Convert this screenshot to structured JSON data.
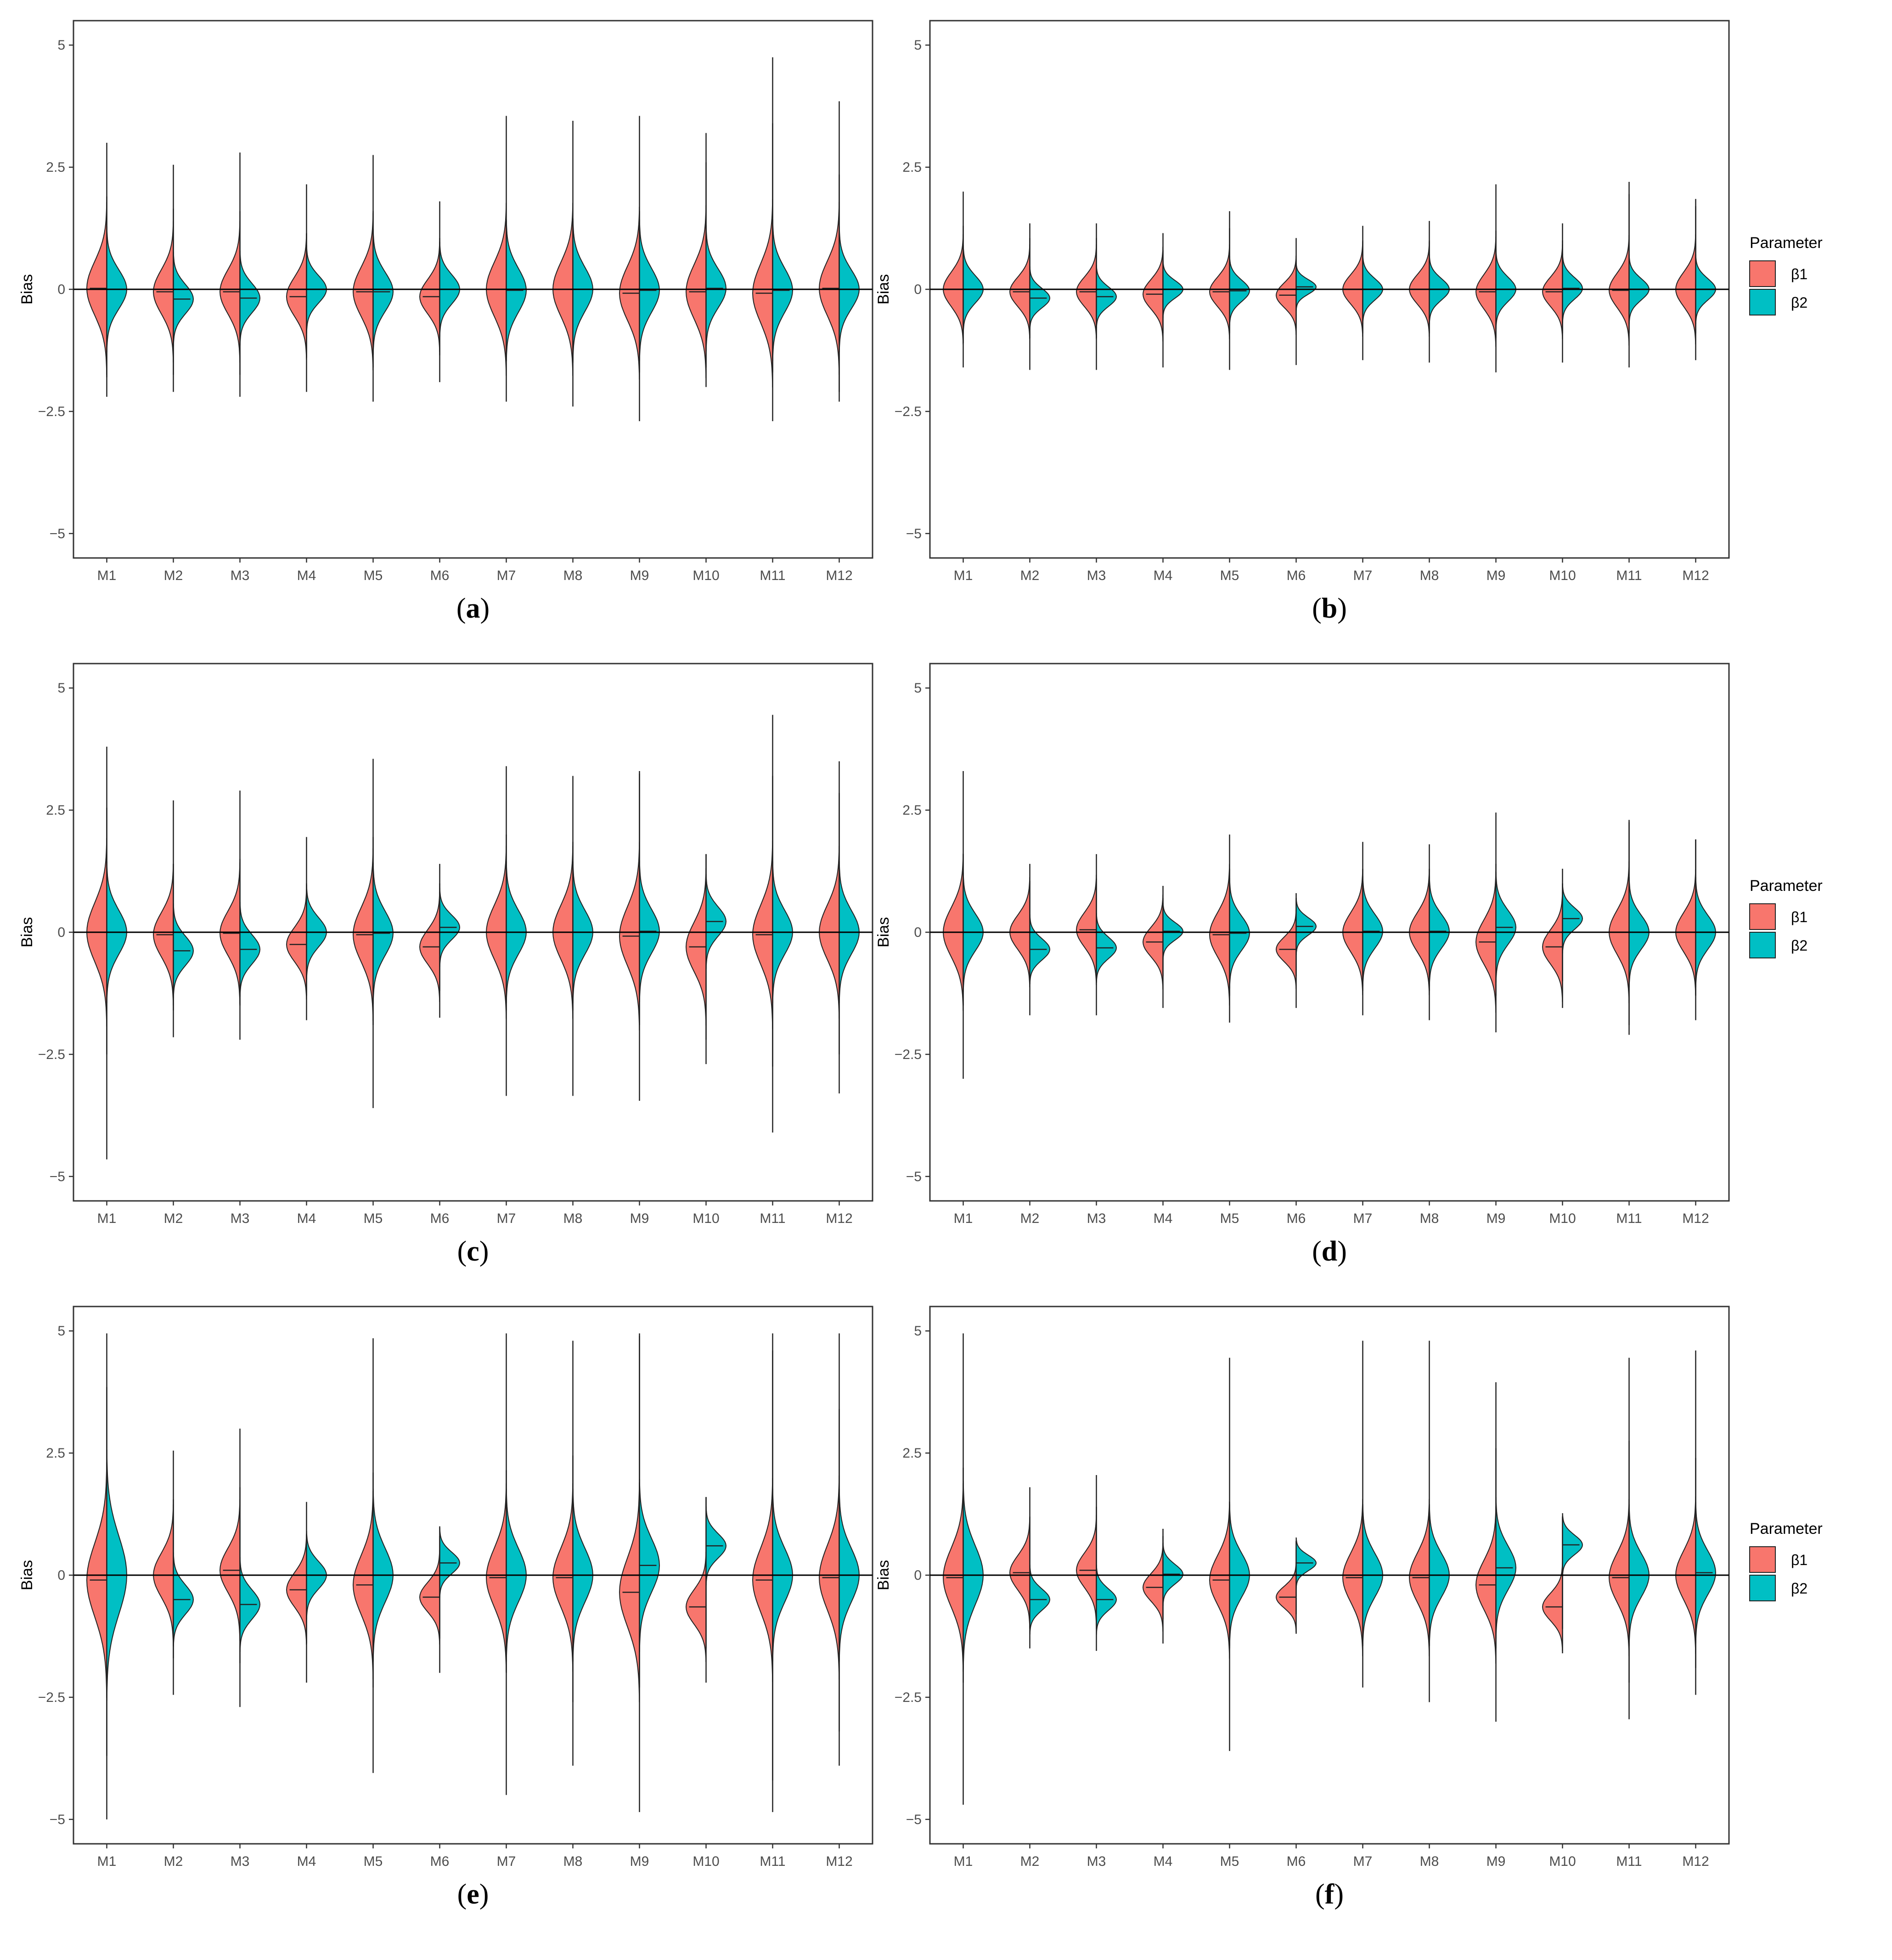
{
  "colors": {
    "beta1": "#F8766D",
    "beta2": "#00BFC4",
    "outline": "#222222",
    "zero_line": "#000000",
    "frame": "#333333",
    "tick_text": "#4d4d4d"
  },
  "legend": {
    "title": "Parameter",
    "items": [
      "β1",
      "β2"
    ]
  },
  "chart_data": [
    {
      "panel": "a",
      "caption_label": "a",
      "show_legend": false,
      "type": "split-violin",
      "ylabel": "Bias",
      "ylim": [
        -5.5,
        5.5
      ],
      "yticks": [
        5,
        2.5,
        0,
        -2.5,
        -5
      ],
      "ytick_labels": [
        "5",
        "2.5",
        "0",
        "−2.5",
        "−5"
      ],
      "categories": [
        "M1",
        "M2",
        "M3",
        "M4",
        "M5",
        "M6",
        "M7",
        "M8",
        "M9",
        "M10",
        "M11",
        "M12"
      ],
      "series": [
        {
          "name": "β1",
          "median": [
            0.02,
            -0.05,
            -0.05,
            -0.15,
            -0.05,
            -0.15,
            0.0,
            0.0,
            -0.08,
            -0.05,
            -0.08,
            0.02
          ],
          "spread": [
            0.55,
            0.45,
            0.45,
            0.4,
            0.5,
            0.35,
            0.55,
            0.55,
            0.55,
            0.55,
            0.6,
            0.55
          ],
          "min": [
            -2.2,
            -2.1,
            -2.2,
            -2.1,
            -2.3,
            -1.9,
            -2.3,
            -2.4,
            -2.7,
            -2.0,
            -2.7,
            -2.3
          ],
          "max": [
            3.0,
            2.55,
            2.8,
            2.15,
            2.75,
            1.8,
            3.55,
            3.45,
            3.55,
            3.2,
            4.75,
            3.85
          ]
        },
        {
          "name": "β2",
          "median": [
            0.0,
            -0.2,
            -0.18,
            0.0,
            -0.05,
            0.0,
            -0.02,
            0.0,
            -0.02,
            0.02,
            -0.02,
            0.0
          ],
          "spread": [
            0.4,
            0.3,
            0.3,
            0.28,
            0.4,
            0.3,
            0.45,
            0.45,
            0.45,
            0.4,
            0.45,
            0.4
          ],
          "min": [
            -1.8,
            -1.75,
            -1.75,
            -1.4,
            -1.6,
            -1.35,
            -1.4,
            -1.5,
            -1.7,
            -1.6,
            -1.7,
            -2.1
          ],
          "max": [
            1.9,
            1.65,
            1.6,
            1.15,
            1.6,
            1.05,
            1.4,
            1.4,
            1.6,
            2.6,
            3.4,
            2.35
          ]
        }
      ]
    },
    {
      "panel": "b",
      "caption_label": "b",
      "show_legend": true,
      "type": "split-violin",
      "ylabel": "Bias",
      "ylim": [
        -5.5,
        5.5
      ],
      "yticks": [
        5,
        2.5,
        0,
        -2.5,
        -5
      ],
      "ytick_labels": [
        "5",
        "2.5",
        "0",
        "−2.5",
        "−5"
      ],
      "categories": [
        "M1",
        "M2",
        "M3",
        "M4",
        "M5",
        "M6",
        "M7",
        "M8",
        "M9",
        "M10",
        "M11",
        "M12"
      ],
      "series": [
        {
          "name": "β1",
          "median": [
            0.0,
            -0.05,
            -0.05,
            -0.1,
            -0.05,
            -0.12,
            0.0,
            0.0,
            -0.05,
            -0.05,
            -0.02,
            0.0
          ],
          "spread": [
            0.35,
            0.3,
            0.3,
            0.3,
            0.3,
            0.25,
            0.3,
            0.3,
            0.35,
            0.3,
            0.35,
            0.35
          ],
          "min": [
            -1.6,
            -1.65,
            -1.65,
            -1.6,
            -1.65,
            -1.55,
            -1.45,
            -1.5,
            -1.7,
            -1.5,
            -1.6,
            -1.45
          ],
          "max": [
            2.0,
            1.35,
            1.35,
            1.15,
            1.6,
            1.05,
            1.3,
            1.4,
            2.15,
            1.35,
            2.2,
            1.85
          ]
        },
        {
          "name": "β2",
          "median": [
            0.0,
            -0.18,
            -0.15,
            0.0,
            -0.03,
            0.05,
            0.0,
            0.0,
            0.0,
            0.02,
            0.0,
            0.0
          ],
          "spread": [
            0.28,
            0.2,
            0.2,
            0.18,
            0.22,
            0.15,
            0.22,
            0.22,
            0.25,
            0.22,
            0.22,
            0.22
          ],
          "min": [
            -1.1,
            -1.0,
            -1.0,
            -0.9,
            -0.9,
            -0.8,
            -0.9,
            -0.9,
            -1.0,
            -0.9,
            -0.9,
            -0.9
          ],
          "max": [
            1.3,
            1.05,
            1.05,
            0.8,
            1.25,
            0.6,
            1.0,
            1.0,
            1.2,
            1.0,
            1.95,
            1.7
          ]
        }
      ]
    },
    {
      "panel": "c",
      "caption_label": "c",
      "show_legend": false,
      "type": "split-violin",
      "ylabel": "Bias",
      "ylim": [
        -5.5,
        5.5
      ],
      "yticks": [
        5,
        2.5,
        0,
        -2.5,
        -5
      ],
      "ytick_labels": [
        "5",
        "2.5",
        "0",
        "−2.5",
        "−5"
      ],
      "categories": [
        "M1",
        "M2",
        "M3",
        "M4",
        "M5",
        "M6",
        "M7",
        "M8",
        "M9",
        "M10",
        "M11",
        "M12"
      ],
      "series": [
        {
          "name": "β1",
          "median": [
            0.0,
            -0.05,
            -0.02,
            -0.25,
            -0.05,
            -0.3,
            0.0,
            0.0,
            -0.08,
            -0.3,
            -0.05,
            0.0
          ],
          "spread": [
            0.6,
            0.45,
            0.45,
            0.35,
            0.55,
            0.35,
            0.55,
            0.55,
            0.6,
            0.5,
            0.6,
            0.55
          ],
          "min": [
            -4.65,
            -2.15,
            -2.2,
            -1.8,
            -3.6,
            -1.75,
            -3.35,
            -3.35,
            -3.45,
            -2.7,
            -4.1,
            -3.3
          ],
          "max": [
            3.8,
            2.7,
            2.9,
            1.95,
            3.55,
            1.4,
            3.4,
            3.2,
            3.3,
            1.6,
            4.45,
            3.5
          ]
        },
        {
          "name": "β2",
          "median": [
            0.0,
            -0.38,
            -0.35,
            0.0,
            -0.02,
            0.1,
            0.0,
            0.0,
            0.02,
            0.22,
            0.0,
            0.0
          ],
          "spread": [
            0.45,
            0.3,
            0.3,
            0.3,
            0.45,
            0.25,
            0.45,
            0.45,
            0.45,
            0.3,
            0.45,
            0.45
          ],
          "min": [
            -2.5,
            -1.6,
            -1.5,
            -1.3,
            -1.9,
            -1.2,
            -1.6,
            -1.6,
            -1.9,
            -2.2,
            -2.75,
            -2.5
          ],
          "max": [
            2.55,
            1.4,
            1.5,
            1.0,
            1.95,
            1.0,
            2.0,
            1.85,
            3.25,
            1.6,
            3.2,
            2.85
          ]
        }
      ]
    },
    {
      "panel": "d",
      "caption_label": "d",
      "show_legend": true,
      "type": "split-violin",
      "ylabel": "Bias",
      "ylim": [
        -5.5,
        5.5
      ],
      "yticks": [
        5,
        2.5,
        0,
        -2.5,
        -5
      ],
      "ytick_labels": [
        "5",
        "2.5",
        "0",
        "−2.5",
        "−5"
      ],
      "categories": [
        "M1",
        "M2",
        "M3",
        "M4",
        "M5",
        "M6",
        "M7",
        "M8",
        "M9",
        "M10",
        "M11",
        "M12"
      ],
      "series": [
        {
          "name": "β1",
          "median": [
            0.0,
            0.0,
            0.05,
            -0.2,
            -0.05,
            -0.35,
            0.0,
            0.0,
            -0.2,
            -0.3,
            0.0,
            0.0
          ],
          "spread": [
            0.5,
            0.35,
            0.35,
            0.3,
            0.45,
            0.25,
            0.4,
            0.4,
            0.45,
            0.35,
            0.45,
            0.4
          ],
          "min": [
            -3.0,
            -1.7,
            -1.7,
            -1.55,
            -1.85,
            -1.55,
            -1.7,
            -1.8,
            -2.05,
            -1.55,
            -2.1,
            -1.8
          ],
          "max": [
            3.3,
            1.4,
            1.6,
            0.95,
            2.0,
            0.8,
            1.85,
            1.8,
            2.45,
            1.3,
            2.3,
            1.9
          ]
        },
        {
          "name": "β2",
          "median": [
            0.0,
            -0.35,
            -0.32,
            0.02,
            -0.02,
            0.12,
            0.02,
            0.02,
            0.1,
            0.28,
            0.0,
            0.0
          ],
          "spread": [
            0.38,
            0.22,
            0.22,
            0.18,
            0.35,
            0.18,
            0.35,
            0.35,
            0.35,
            0.22,
            0.35,
            0.35
          ],
          "min": [
            -1.5,
            -1.0,
            -1.0,
            -0.9,
            -1.3,
            -0.9,
            -1.2,
            -1.2,
            -1.3,
            -1.0,
            -1.9,
            -1.3
          ],
          "max": [
            1.6,
            1.05,
            1.1,
            0.7,
            1.3,
            0.7,
            1.3,
            1.3,
            1.4,
            1.0,
            2.25,
            1.9
          ]
        }
      ]
    },
    {
      "panel": "e",
      "caption_label": "e",
      "show_legend": false,
      "type": "split-violin",
      "ylabel": "Bias",
      "ylim": [
        -5.5,
        5.5
      ],
      "yticks": [
        5,
        2.5,
        0,
        -2.5,
        -5
      ],
      "ytick_labels": [
        "5",
        "2.5",
        "0",
        "−2.5",
        "−5"
      ],
      "categories": [
        "M1",
        "M2",
        "M3",
        "M4",
        "M5",
        "M6",
        "M7",
        "M8",
        "M9",
        "M10",
        "M11",
        "M12"
      ],
      "series": [
        {
          "name": "β1",
          "median": [
            -0.1,
            0.0,
            0.1,
            -0.3,
            -0.2,
            -0.45,
            -0.05,
            -0.05,
            -0.35,
            -0.65,
            -0.1,
            -0.05
          ],
          "spread": [
            0.75,
            0.45,
            0.45,
            0.35,
            0.6,
            0.3,
            0.6,
            0.6,
            0.7,
            0.35,
            0.65,
            0.65
          ],
          "min": [
            -5.0,
            -2.45,
            -2.7,
            -2.2,
            -4.05,
            -2.0,
            -4.5,
            -3.9,
            -4.85,
            -2.2,
            -4.85,
            -3.9
          ],
          "max": [
            4.95,
            2.55,
            3.0,
            1.5,
            4.85,
            1.0,
            4.95,
            4.8,
            4.95,
            1.6,
            4.95,
            4.95
          ]
        },
        {
          "name": "β2",
          "median": [
            0.0,
            -0.5,
            -0.6,
            0.0,
            0.0,
            0.25,
            0.0,
            0.0,
            0.2,
            0.6,
            0.0,
            0.0
          ],
          "spread": [
            0.8,
            0.3,
            0.3,
            0.28,
            0.55,
            0.22,
            0.55,
            0.55,
            0.55,
            0.25,
            0.55,
            0.55
          ],
          "min": [
            -3.7,
            -1.7,
            -1.8,
            -1.4,
            -2.3,
            -1.3,
            -2.0,
            -2.6,
            -2.3,
            -1.5,
            -4.2,
            -3.2
          ],
          "max": [
            3.85,
            1.55,
            1.8,
            0.85,
            2.1,
            0.8,
            2.15,
            2.45,
            4.9,
            1.6,
            4.6,
            3.4
          ]
        }
      ]
    },
    {
      "panel": "f",
      "caption_label": "f",
      "show_legend": true,
      "type": "split-violin",
      "ylabel": "Bias",
      "ylim": [
        -5.5,
        5.5
      ],
      "yticks": [
        5,
        2.5,
        0,
        -2.5,
        -5
      ],
      "ytick_labels": [
        "5",
        "2.5",
        "0",
        "−2.5",
        "−5"
      ],
      "categories": [
        "M1",
        "M2",
        "M3",
        "M4",
        "M5",
        "M6",
        "M7",
        "M8",
        "M9",
        "M10",
        "M11",
        "M12"
      ],
      "series": [
        {
          "name": "β1",
          "median": [
            -0.05,
            0.05,
            0.1,
            -0.25,
            -0.1,
            -0.45,
            -0.05,
            -0.05,
            -0.2,
            -0.65,
            -0.05,
            0.0
          ],
          "spread": [
            0.6,
            0.35,
            0.35,
            0.28,
            0.5,
            0.22,
            0.5,
            0.5,
            0.5,
            0.28,
            0.5,
            0.5
          ],
          "min": [
            -4.7,
            -1.5,
            -1.55,
            -1.4,
            -3.6,
            -1.2,
            -2.3,
            -2.6,
            -3.0,
            -1.6,
            -2.95,
            -2.45
          ],
          "max": [
            4.95,
            1.8,
            2.05,
            0.95,
            4.45,
            0.7,
            4.8,
            4.8,
            3.95,
            1.2,
            4.45,
            4.6
          ]
        },
        {
          "name": "β2",
          "median": [
            0.0,
            -0.5,
            -0.5,
            0.02,
            0.0,
            0.25,
            0.0,
            0.0,
            0.15,
            0.62,
            0.0,
            0.05
          ],
          "spread": [
            0.6,
            0.22,
            0.22,
            0.2,
            0.45,
            0.16,
            0.45,
            0.45,
            0.45,
            0.2,
            0.45,
            0.45
          ],
          "min": [
            -2.2,
            -1.1,
            -1.1,
            -0.9,
            -1.5,
            -0.8,
            -1.3,
            -1.3,
            -1.5,
            -1.1,
            -2.2,
            -1.9
          ],
          "max": [
            2.2,
            1.2,
            1.4,
            0.8,
            1.5,
            0.7,
            1.4,
            1.4,
            2.6,
            1.2,
            2.75,
            2.4
          ]
        }
      ]
    }
  ]
}
